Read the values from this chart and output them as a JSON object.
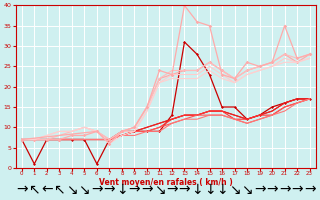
{
  "xlabel": "Vent moyen/en rafales ( km/h )",
  "xlim": [
    -0.5,
    23.5
  ],
  "ylim": [
    0,
    40
  ],
  "xticks": [
    0,
    1,
    2,
    3,
    4,
    5,
    6,
    7,
    8,
    9,
    10,
    11,
    12,
    13,
    14,
    15,
    16,
    17,
    18,
    19,
    20,
    21,
    22,
    23
  ],
  "yticks": [
    0,
    5,
    10,
    15,
    20,
    25,
    30,
    35,
    40
  ],
  "bg_color": "#cff0f0",
  "grid_color": "#ffffff",
  "lines": [
    {
      "x": [
        0,
        1,
        2,
        3,
        4,
        5,
        6,
        7,
        8,
        9,
        10,
        11,
        12,
        13,
        14,
        15,
        16,
        17,
        18,
        19,
        20,
        21,
        22,
        23
      ],
      "y": [
        7,
        1,
        7,
        7,
        7,
        7,
        1,
        7,
        9,
        9,
        9,
        9,
        13,
        31,
        28,
        23,
        15,
        15,
        12,
        13,
        15,
        16,
        17,
        17
      ],
      "color": "#cc0000",
      "lw": 0.9,
      "marker": "D",
      "ms": 1.5
    },
    {
      "x": [
        0,
        1,
        2,
        3,
        4,
        5,
        6,
        7,
        8,
        9,
        10,
        11,
        12,
        13,
        14,
        15,
        16,
        17,
        18,
        19,
        20,
        21,
        22,
        23
      ],
      "y": [
        7,
        7,
        7,
        7,
        7,
        7,
        7,
        7,
        8,
        9,
        10,
        11,
        12,
        13,
        13,
        14,
        14,
        13,
        12,
        13,
        14,
        16,
        17,
        17
      ],
      "color": "#dd1111",
      "lw": 0.8,
      "marker": null,
      "ms": 0
    },
    {
      "x": [
        0,
        1,
        2,
        3,
        4,
        5,
        6,
        7,
        8,
        9,
        10,
        11,
        12,
        13,
        14,
        15,
        16,
        17,
        18,
        19,
        20,
        21,
        22,
        23
      ],
      "y": [
        7,
        7,
        7,
        7,
        7,
        7,
        7,
        7,
        8,
        9,
        10,
        11,
        12,
        13,
        13,
        14,
        14,
        13,
        12,
        13,
        14,
        16,
        17,
        17
      ],
      "color": "#ee2222",
      "lw": 0.8,
      "marker": null,
      "ms": 0
    },
    {
      "x": [
        0,
        1,
        2,
        3,
        4,
        5,
        6,
        7,
        8,
        9,
        10,
        11,
        12,
        13,
        14,
        15,
        16,
        17,
        18,
        19,
        20,
        21,
        22,
        23
      ],
      "y": [
        7,
        7,
        7,
        7,
        7,
        7,
        7,
        7,
        8,
        9,
        9,
        10,
        12,
        13,
        13,
        14,
        14,
        12,
        12,
        13,
        13,
        15,
        16,
        17
      ],
      "color": "#ff3333",
      "lw": 0.8,
      "marker": null,
      "ms": 0
    },
    {
      "x": [
        0,
        1,
        2,
        3,
        4,
        5,
        6,
        7,
        8,
        9,
        10,
        11,
        12,
        13,
        14,
        15,
        16,
        17,
        18,
        19,
        20,
        21,
        22,
        23
      ],
      "y": [
        7,
        7,
        7,
        7,
        7,
        7,
        7,
        7,
        8,
        9,
        9,
        10,
        11,
        12,
        13,
        13,
        13,
        12,
        11,
        12,
        13,
        15,
        16,
        17
      ],
      "color": "#ff5555",
      "lw": 0.8,
      "marker": null,
      "ms": 0
    },
    {
      "x": [
        0,
        1,
        2,
        3,
        4,
        5,
        6,
        7,
        8,
        9,
        10,
        11,
        12,
        13,
        14,
        15,
        16,
        17,
        18,
        19,
        20,
        21,
        22,
        23
      ],
      "y": [
        7,
        7,
        7,
        7,
        7,
        7,
        7,
        7,
        8,
        8,
        9,
        9,
        11,
        12,
        12,
        13,
        13,
        12,
        11,
        12,
        13,
        14,
        16,
        17
      ],
      "color": "#ff7777",
      "lw": 0.8,
      "marker": null,
      "ms": 0
    },
    {
      "x": [
        0,
        1,
        2,
        3,
        4,
        5,
        6,
        7,
        8,
        9,
        10,
        11,
        12,
        13,
        14,
        15,
        16,
        17,
        18,
        19,
        20,
        21,
        22,
        23
      ],
      "y": [
        7,
        7,
        7,
        7,
        8,
        8,
        9,
        7,
        9,
        10,
        15,
        22,
        23,
        24,
        24,
        26,
        24,
        22,
        24,
        25,
        26,
        28,
        26,
        28
      ],
      "color": "#ffaaaa",
      "lw": 0.9,
      "marker": "D",
      "ms": 1.8
    },
    {
      "x": [
        0,
        1,
        2,
        3,
        4,
        5,
        6,
        7,
        8,
        9,
        10,
        11,
        12,
        13,
        14,
        15,
        16,
        17,
        18,
        19,
        20,
        21,
        22,
        23
      ],
      "y": [
        7,
        7,
        7,
        8,
        9,
        10,
        9,
        7,
        9,
        10,
        15,
        22,
        24,
        24,
        24,
        26,
        24,
        22,
        24,
        25,
        26,
        28,
        27,
        28
      ],
      "color": "#ffbbbb",
      "lw": 0.8,
      "marker": null,
      "ms": 0
    },
    {
      "x": [
        0,
        1,
        2,
        3,
        4,
        5,
        6,
        7,
        8,
        9,
        10,
        11,
        12,
        13,
        14,
        15,
        16,
        17,
        18,
        19,
        20,
        21,
        22,
        23
      ],
      "y": [
        7,
        7,
        8,
        9,
        9,
        10,
        9,
        6,
        9,
        9,
        14,
        21,
        23,
        23,
        23,
        25,
        23,
        21,
        23,
        24,
        25,
        27,
        26,
        27
      ],
      "color": "#ffcccc",
      "lw": 0.8,
      "marker": null,
      "ms": 0
    },
    {
      "x": [
        0,
        1,
        2,
        3,
        4,
        5,
        6,
        7,
        8,
        9,
        10,
        11,
        12,
        13,
        14,
        15,
        16,
        17,
        18,
        19,
        20,
        21,
        22,
        23
      ],
      "y": [
        7,
        7,
        8,
        9,
        9,
        10,
        9,
        6,
        8,
        9,
        14,
        21,
        22,
        22,
        22,
        24,
        22,
        21,
        23,
        24,
        25,
        26,
        26,
        27
      ],
      "color": "#ffd0d0",
      "lw": 0.8,
      "marker": null,
      "ms": 0
    },
    {
      "x": [
        0,
        6,
        7,
        8,
        9,
        10,
        11,
        12,
        13,
        14,
        15,
        16,
        17,
        18,
        19,
        20,
        21,
        22,
        23
      ],
      "y": [
        7,
        9,
        6,
        9,
        10,
        15,
        24,
        23,
        40,
        36,
        35,
        23,
        22,
        26,
        25,
        26,
        35,
        27,
        28
      ],
      "color": "#ffaaaa",
      "lw": 0.9,
      "marker": "D",
      "ms": 1.8
    }
  ]
}
